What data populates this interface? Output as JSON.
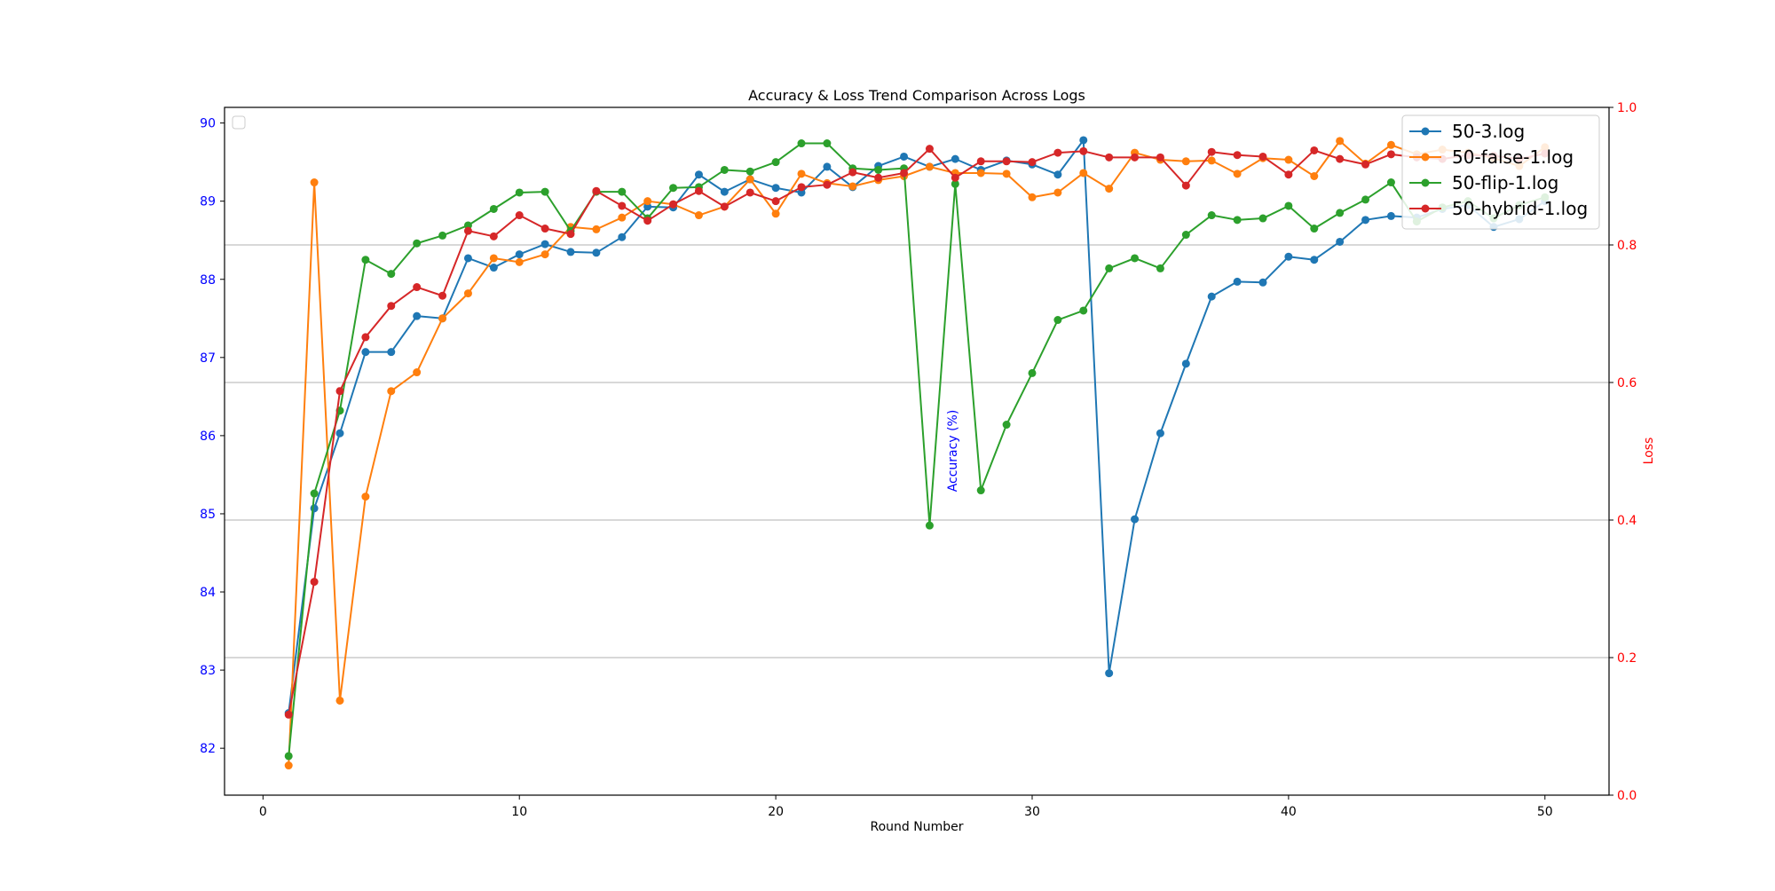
{
  "chart_data": {
    "type": "line",
    "title": "Accuracy & Loss Trend Comparison Across Logs",
    "xlabel": "Round Number",
    "ylabel_left": "Accuracy (%)",
    "ylabel_right": "Loss",
    "xlim": [
      -1.5,
      52.5
    ],
    "ylim_left": [
      81.4,
      90.2
    ],
    "ylim_right": [
      0.0,
      1.0
    ],
    "xticks": [
      "0",
      "10",
      "20",
      "30",
      "40",
      "50"
    ],
    "yticks_left": [
      "82",
      "83",
      "84",
      "85",
      "86",
      "87",
      "88",
      "89",
      "90"
    ],
    "yticks_right": [
      "0.0",
      "0.2",
      "0.4",
      "0.6",
      "0.8",
      "1.0"
    ],
    "right_axis_grid": true,
    "legend_placement": "top-right",
    "colors": {
      "left_axis": "#0000ff",
      "right_axis": "#ff0000",
      "frame": "#000000",
      "grid": "#b0b0b0"
    },
    "x": [
      1,
      2,
      3,
      4,
      5,
      6,
      7,
      8,
      9,
      10,
      11,
      12,
      13,
      14,
      15,
      16,
      17,
      18,
      19,
      20,
      21,
      22,
      23,
      24,
      25,
      26,
      27,
      28,
      29,
      30,
      31,
      32,
      33,
      34,
      35,
      36,
      37,
      38,
      39,
      40,
      41,
      42,
      43,
      44,
      45,
      46,
      47,
      48,
      49,
      50
    ],
    "series": [
      {
        "name": "50-3.log",
        "color": "#1f77b4",
        "values": [
          82.45,
          85.07,
          86.03,
          87.07,
          87.07,
          87.53,
          87.5,
          88.27,
          88.15,
          88.32,
          88.45,
          88.35,
          88.34,
          88.54,
          88.93,
          88.92,
          89.34,
          89.12,
          89.28,
          89.17,
          89.11,
          89.44,
          89.18,
          89.45,
          89.57,
          89.44,
          89.54,
          89.4,
          89.52,
          89.47,
          89.34,
          89.78,
          82.96,
          84.93,
          86.03,
          86.92,
          87.78,
          87.97,
          87.96,
          88.29,
          88.25,
          88.48,
          88.76,
          88.81,
          88.79,
          88.9,
          88.95,
          88.67,
          88.77,
          89.0
        ]
      },
      {
        "name": "50-false-1.log",
        "color": "#ff7f0e",
        "values": [
          81.78,
          89.24,
          82.61,
          85.22,
          86.57,
          86.81,
          87.5,
          87.82,
          88.27,
          88.22,
          88.32,
          88.67,
          88.64,
          88.79,
          89.0,
          88.96,
          88.82,
          88.93,
          89.28,
          88.84,
          89.35,
          89.23,
          89.19,
          89.27,
          89.32,
          89.44,
          89.36,
          89.36,
          89.35,
          89.05,
          89.11,
          89.36,
          89.16,
          89.62,
          89.53,
          89.51,
          89.52,
          89.35,
          89.55,
          89.53,
          89.32,
          89.77,
          89.48,
          89.72,
          89.6,
          89.66,
          89.62,
          89.55,
          89.45,
          89.69
        ]
      },
      {
        "name": "50-flip-1.log",
        "color": "#2ca02c",
        "values": [
          81.9,
          85.26,
          86.32,
          88.25,
          88.07,
          88.46,
          88.56,
          88.69,
          88.9,
          89.11,
          89.12,
          88.62,
          89.12,
          89.12,
          88.78,
          89.17,
          89.18,
          89.4,
          89.38,
          89.5,
          89.74,
          89.74,
          89.42,
          89.4,
          89.42,
          84.85,
          89.22,
          85.3,
          86.14,
          86.8,
          87.48,
          87.6,
          88.14,
          88.27,
          88.14,
          88.57,
          88.82,
          88.76,
          88.78,
          88.94,
          88.65,
          88.85,
          89.02,
          89.24,
          88.74,
          88.92,
          89.0,
          88.78,
          88.95,
          89.05
        ]
      },
      {
        "name": "50-hybrid-1.log",
        "color": "#d62728",
        "values": [
          82.43,
          84.13,
          86.57,
          87.26,
          87.66,
          87.9,
          87.79,
          88.62,
          88.55,
          88.82,
          88.65,
          88.58,
          89.13,
          88.94,
          88.75,
          88.96,
          89.13,
          88.93,
          89.11,
          89.0,
          89.18,
          89.21,
          89.37,
          89.3,
          89.36,
          89.67,
          89.3,
          89.51,
          89.51,
          89.5,
          89.62,
          89.64,
          89.56,
          89.56,
          89.56,
          89.2,
          89.63,
          89.59,
          89.57,
          89.34,
          89.65,
          89.54,
          89.47,
          89.6,
          89.56,
          89.54,
          89.59,
          89.58,
          89.54,
          89.61
        ]
      }
    ]
  }
}
